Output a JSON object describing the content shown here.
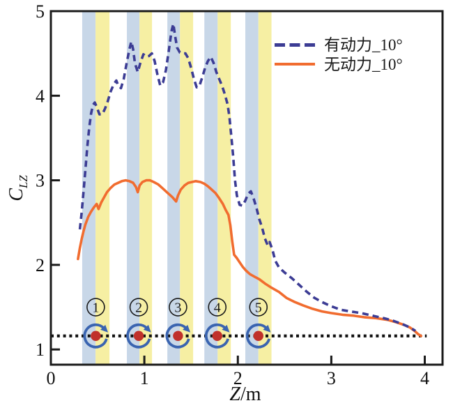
{
  "figure": {
    "background": "#ffffff",
    "ylabel": {
      "variable": "C",
      "subscript": "LZ"
    },
    "xlabel": {
      "variable": "Z",
      "unit": "/m"
    },
    "legend": [
      {
        "label": "有动力_10°",
        "style": "dashed",
        "color": "#3c3c94"
      },
      {
        "label": "无动力_10°",
        "style": "solid",
        "color": "#f16c2f"
      }
    ]
  },
  "chart_data": {
    "type": "line",
    "title": "",
    "xlabel": "Z/m",
    "ylabel": "C_LZ",
    "xlim": [
      0,
      4.19
    ],
    "ylim": [
      0.82,
      5.0
    ],
    "x_ticks": [
      0,
      1,
      2,
      3,
      4
    ],
    "y_ticks": [
      1,
      2,
      3,
      4,
      5
    ],
    "grid": false,
    "legend_position": "top-right-inside",
    "frame_color": "#1a1a1a",
    "series": [
      {
        "name": "有动力_10°",
        "style": "dashed",
        "color": "#3c3c94",
        "points": [
          [
            0.31,
            2.42
          ],
          [
            0.33,
            2.63
          ],
          [
            0.35,
            2.87
          ],
          [
            0.37,
            3.13
          ],
          [
            0.39,
            3.4
          ],
          [
            0.41,
            3.62
          ],
          [
            0.43,
            3.79
          ],
          [
            0.45,
            3.89
          ],
          [
            0.47,
            3.92
          ],
          [
            0.49,
            3.87
          ],
          [
            0.52,
            3.78
          ],
          [
            0.55,
            3.78
          ],
          [
            0.58,
            3.85
          ],
          [
            0.61,
            3.94
          ],
          [
            0.64,
            4.05
          ],
          [
            0.67,
            4.13
          ],
          [
            0.7,
            4.18
          ],
          [
            0.72,
            4.12
          ],
          [
            0.75,
            4.09
          ],
          [
            0.78,
            4.2
          ],
          [
            0.81,
            4.38
          ],
          [
            0.84,
            4.55
          ],
          [
            0.86,
            4.64
          ],
          [
            0.88,
            4.55
          ],
          [
            0.9,
            4.38
          ],
          [
            0.93,
            4.28
          ],
          [
            0.96,
            4.4
          ],
          [
            0.99,
            4.49
          ],
          [
            1.02,
            4.46
          ],
          [
            1.05,
            4.47
          ],
          [
            1.08,
            4.5
          ],
          [
            1.11,
            4.41
          ],
          [
            1.14,
            4.25
          ],
          [
            1.17,
            4.12
          ],
          [
            1.2,
            4.16
          ],
          [
            1.23,
            4.3
          ],
          [
            1.26,
            4.52
          ],
          [
            1.29,
            4.76
          ],
          [
            1.31,
            4.85
          ],
          [
            1.33,
            4.7
          ],
          [
            1.35,
            4.57
          ],
          [
            1.38,
            4.51
          ],
          [
            1.41,
            4.5
          ],
          [
            1.44,
            4.5
          ],
          [
            1.47,
            4.44
          ],
          [
            1.5,
            4.33
          ],
          [
            1.53,
            4.2
          ],
          [
            1.56,
            4.1
          ],
          [
            1.59,
            4.12
          ],
          [
            1.62,
            4.22
          ],
          [
            1.65,
            4.33
          ],
          [
            1.68,
            4.41
          ],
          [
            1.71,
            4.46
          ],
          [
            1.74,
            4.39
          ],
          [
            1.77,
            4.28
          ],
          [
            1.8,
            4.2
          ],
          [
            1.83,
            4.12
          ],
          [
            1.86,
            4.02
          ],
          [
            1.89,
            3.9
          ],
          [
            1.91,
            3.75
          ],
          [
            1.93,
            3.52
          ],
          [
            1.95,
            3.28
          ],
          [
            1.97,
            3.0
          ],
          [
            1.99,
            2.82
          ],
          [
            2.02,
            2.71
          ],
          [
            2.05,
            2.7
          ],
          [
            2.08,
            2.76
          ],
          [
            2.11,
            2.84
          ],
          [
            2.14,
            2.87
          ],
          [
            2.17,
            2.78
          ],
          [
            2.2,
            2.67
          ],
          [
            2.23,
            2.54
          ],
          [
            2.26,
            2.44
          ],
          [
            2.29,
            2.31
          ],
          [
            2.32,
            2.23
          ],
          [
            2.34,
            2.27
          ],
          [
            2.37,
            2.18
          ],
          [
            2.4,
            2.05
          ],
          [
            2.44,
            1.97
          ],
          [
            2.5,
            1.91
          ],
          [
            2.58,
            1.84
          ],
          [
            2.66,
            1.76
          ],
          [
            2.74,
            1.68
          ],
          [
            2.82,
            1.61
          ],
          [
            2.9,
            1.56
          ],
          [
            3.0,
            1.51
          ],
          [
            3.1,
            1.47
          ],
          [
            3.2,
            1.45
          ],
          [
            3.32,
            1.43
          ],
          [
            3.44,
            1.4
          ],
          [
            3.56,
            1.37
          ],
          [
            3.66,
            1.34
          ],
          [
            3.76,
            1.3
          ],
          [
            3.84,
            1.26
          ],
          [
            3.9,
            1.22
          ]
        ]
      },
      {
        "name": "无动力_10°",
        "style": "solid",
        "color": "#f16c2f",
        "points": [
          [
            0.29,
            2.07
          ],
          [
            0.31,
            2.2
          ],
          [
            0.33,
            2.31
          ],
          [
            0.35,
            2.4
          ],
          [
            0.37,
            2.48
          ],
          [
            0.4,
            2.57
          ],
          [
            0.43,
            2.63
          ],
          [
            0.46,
            2.68
          ],
          [
            0.49,
            2.72
          ],
          [
            0.51,
            2.66
          ],
          [
            0.54,
            2.74
          ],
          [
            0.57,
            2.8
          ],
          [
            0.6,
            2.86
          ],
          [
            0.64,
            2.91
          ],
          [
            0.68,
            2.95
          ],
          [
            0.72,
            2.97
          ],
          [
            0.76,
            2.99
          ],
          [
            0.8,
            3.0
          ],
          [
            0.84,
            2.99
          ],
          [
            0.88,
            2.97
          ],
          [
            0.91,
            2.92
          ],
          [
            0.93,
            2.86
          ],
          [
            0.95,
            2.94
          ],
          [
            0.98,
            2.98
          ],
          [
            1.02,
            3.0
          ],
          [
            1.06,
            3.0
          ],
          [
            1.1,
            2.98
          ],
          [
            1.15,
            2.95
          ],
          [
            1.2,
            2.9
          ],
          [
            1.25,
            2.85
          ],
          [
            1.3,
            2.8
          ],
          [
            1.34,
            2.75
          ],
          [
            1.36,
            2.82
          ],
          [
            1.39,
            2.89
          ],
          [
            1.43,
            2.94
          ],
          [
            1.47,
            2.97
          ],
          [
            1.51,
            2.98
          ],
          [
            1.55,
            2.99
          ],
          [
            1.6,
            2.98
          ],
          [
            1.64,
            2.96
          ],
          [
            1.68,
            2.93
          ],
          [
            1.72,
            2.89
          ],
          [
            1.76,
            2.85
          ],
          [
            1.8,
            2.79
          ],
          [
            1.84,
            2.72
          ],
          [
            1.87,
            2.65
          ],
          [
            1.9,
            2.59
          ],
          [
            1.92,
            2.47
          ],
          [
            1.94,
            2.28
          ],
          [
            1.96,
            2.12
          ],
          [
            1.99,
            2.08
          ],
          [
            2.02,
            2.03
          ],
          [
            2.05,
            1.98
          ],
          [
            2.09,
            1.93
          ],
          [
            2.13,
            1.89
          ],
          [
            2.18,
            1.86
          ],
          [
            2.23,
            1.83
          ],
          [
            2.29,
            1.78
          ],
          [
            2.36,
            1.73
          ],
          [
            2.44,
            1.68
          ],
          [
            2.52,
            1.61
          ],
          [
            2.61,
            1.56
          ],
          [
            2.7,
            1.52
          ],
          [
            2.8,
            1.48
          ],
          [
            2.9,
            1.45
          ],
          [
            3.0,
            1.43
          ],
          [
            3.12,
            1.41
          ],
          [
            3.24,
            1.4
          ],
          [
            3.36,
            1.38
          ],
          [
            3.48,
            1.37
          ],
          [
            3.6,
            1.35
          ],
          [
            3.7,
            1.32
          ],
          [
            3.78,
            1.29
          ],
          [
            3.84,
            1.26
          ],
          [
            3.89,
            1.22
          ],
          [
            3.93,
            1.18
          ],
          [
            3.96,
            1.16
          ]
        ]
      }
    ],
    "reference_line": {
      "y": 1.16,
      "x_start": 0.0,
      "x_end": 4.02,
      "style": "dotted",
      "color": "#111111"
    },
    "band_colors": {
      "blue": "#c8d7e8",
      "yellow": "#f6efa3"
    },
    "rotor_bands": [
      {
        "blue": [
          0.335,
          0.478
        ],
        "yellow": [
          0.478,
          0.627
        ]
      },
      {
        "blue": [
          0.813,
          0.948
        ],
        "yellow": [
          0.948,
          1.082
        ]
      },
      {
        "blue": [
          1.246,
          1.381
        ],
        "yellow": [
          1.381,
          1.522
        ]
      },
      {
        "blue": [
          1.642,
          1.784
        ],
        "yellow": [
          1.784,
          1.925
        ]
      },
      {
        "blue": [
          2.08,
          2.22
        ],
        "yellow": [
          2.22,
          2.36
        ]
      }
    ],
    "rotors": {
      "labels": [
        "1",
        "2",
        "3",
        "4",
        "5"
      ],
      "x_positions": [
        0.48,
        0.94,
        1.36,
        1.78,
        2.22
      ],
      "marker_y": 1.16,
      "label_circle_y": 1.5,
      "dot_color": "#c0302a",
      "ring_color": "#3a64b0",
      "label_color": "#1a1a1a",
      "rotation": "clockwise"
    }
  }
}
